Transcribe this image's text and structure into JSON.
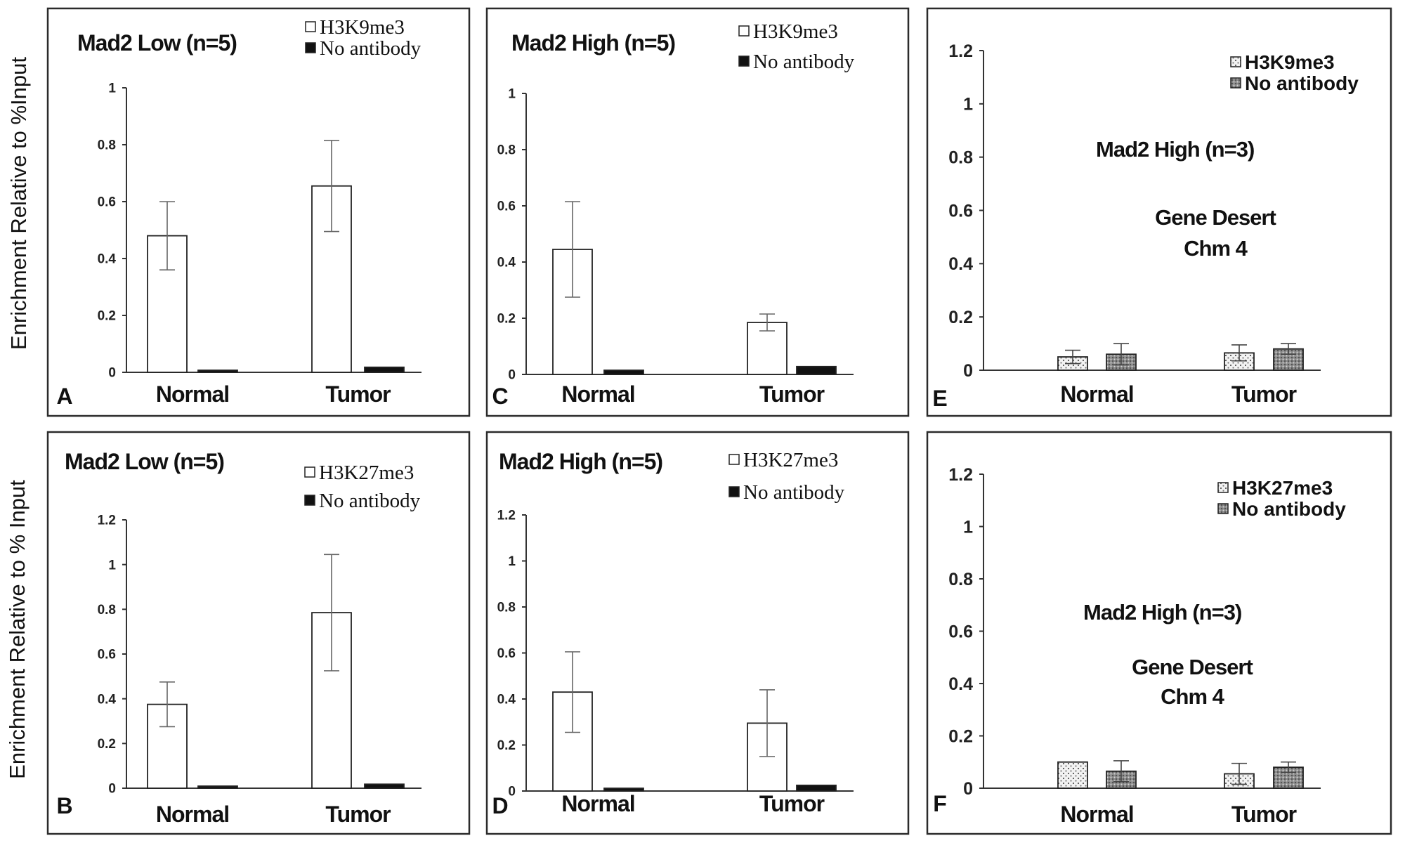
{
  "ylabels": [
    "Enrichment Relative to %Input",
    "Enrichment Relative to % Input"
  ],
  "chart_data": [
    {
      "panel": "A",
      "type": "bar",
      "title": "Mad2 Low (n=5)",
      "categories": [
        "Normal",
        "Tumor"
      ],
      "series": [
        {
          "name": "H3K9me3",
          "values": [
            0.48,
            0.655
          ],
          "err": [
            0.12,
            0.16
          ]
        },
        {
          "name": "No antibody",
          "values": [
            0.005,
            0.018
          ],
          "err": [
            0.003,
            0.004
          ]
        }
      ],
      "ylim": [
        0,
        1
      ],
      "yticks": [
        "0",
        "0.2",
        "0.4",
        "0.6",
        "0.8",
        "1"
      ],
      "legend": "top-right"
    },
    {
      "panel": "C",
      "type": "bar",
      "title": "Mad2 High (n=5)",
      "categories": [
        "Normal",
        "Tumor"
      ],
      "series": [
        {
          "name": "H3K9me3",
          "values": [
            0.445,
            0.185
          ],
          "err": [
            0.17,
            0.03
          ]
        },
        {
          "name": "No antibody",
          "values": [
            0.015,
            0.028
          ],
          "err": [
            0.004,
            0.005
          ]
        }
      ],
      "ylim": [
        0,
        1
      ],
      "yticks": [
        "0",
        "0.2",
        "0.4",
        "0.6",
        "0.8",
        "1"
      ],
      "legend": "top-right"
    },
    {
      "panel": "E",
      "type": "bar",
      "title": "Mad2 High (n=3)",
      "annotation": [
        "Gene Desert",
        "Chm 4"
      ],
      "categories": [
        "Normal",
        "Tumor"
      ],
      "series": [
        {
          "name": "H3K9me3",
          "values": [
            0.05,
            0.065
          ],
          "err": [
            0.025,
            0.03
          ]
        },
        {
          "name": "No antibody",
          "values": [
            0.06,
            0.08
          ],
          "err": [
            0.04,
            0.02
          ]
        }
      ],
      "ylim": [
        0,
        1.2
      ],
      "yticks": [
        "0",
        "0.2",
        "0.4",
        "0.6",
        "0.8",
        "1",
        "1.2"
      ],
      "legend": "top-right"
    },
    {
      "panel": "B",
      "type": "bar",
      "title": "Mad2 Low (n=5)",
      "categories": [
        "Normal",
        "Tumor"
      ],
      "series": [
        {
          "name": "H3K27me3",
          "values": [
            0.375,
            0.785
          ],
          "err": [
            0.1,
            0.26
          ]
        },
        {
          "name": "No antibody",
          "values": [
            0.005,
            0.018
          ],
          "err": [
            0.003,
            0.004
          ]
        }
      ],
      "ylim": [
        0,
        1.2
      ],
      "yticks": [
        "0",
        "0.2",
        "0.4",
        "0.6",
        "0.8",
        "1",
        "1.2"
      ],
      "legend": "top-right"
    },
    {
      "panel": "D",
      "type": "bar",
      "title": "Mad2 High (n=5)",
      "categories": [
        "Normal",
        "Tumor"
      ],
      "series": [
        {
          "name": "H3K27me3",
          "values": [
            0.43,
            0.295
          ],
          "err": [
            0.175,
            0.145
          ]
        },
        {
          "name": "No antibody",
          "values": [
            0.012,
            0.025
          ],
          "err": [
            0.003,
            0.004
          ]
        }
      ],
      "ylim": [
        0,
        1.2
      ],
      "yticks": [
        "0",
        "0.2",
        "0.4",
        "0.6",
        "0.8",
        "1",
        "1.2"
      ],
      "legend": "top-right"
    },
    {
      "panel": "F",
      "type": "bar",
      "title": "Mad2 High (n=3)",
      "annotation": [
        "Gene Desert",
        "Chm 4"
      ],
      "categories": [
        "Normal",
        "Tumor"
      ],
      "series": [
        {
          "name": "H3K27me3",
          "values": [
            0.1,
            0.055
          ],
          "err": [
            0.003,
            0.04
          ]
        },
        {
          "name": "No antibody",
          "values": [
            0.065,
            0.08
          ],
          "err": [
            0.04,
            0.02
          ]
        }
      ],
      "ylim": [
        0,
        1.2
      ],
      "yticks": [
        "0",
        "0.2",
        "0.4",
        "0.6",
        "0.8",
        "1",
        "1.2"
      ],
      "legend": "top-right"
    }
  ],
  "colors": {
    "frame": "#2b2b2b",
    "bar_open": "#ffffff",
    "bar_black": "#111111",
    "dotted": "#e8e8e8",
    "hatched": "#9a9a9a"
  }
}
